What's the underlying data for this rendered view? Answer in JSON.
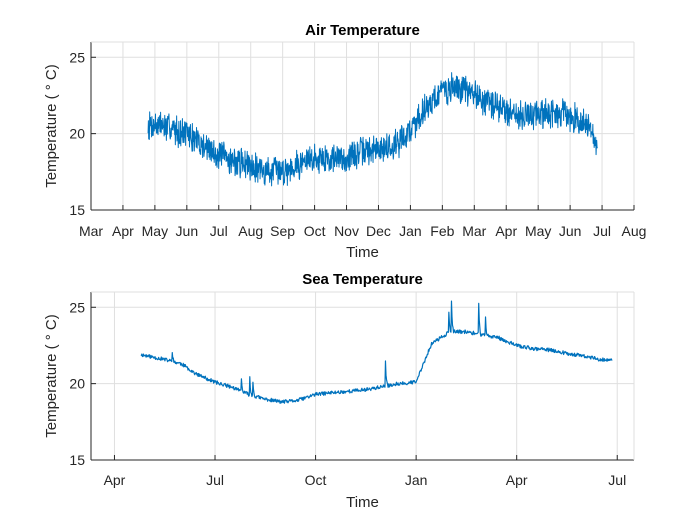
{
  "chart_data": [
    {
      "type": "line",
      "title": "Air Temperature",
      "xlabel": "Time",
      "ylabel": "Temperature ( ° C)",
      "ylim": [
        15,
        26
      ],
      "yticks": [
        15,
        20,
        25
      ],
      "xlim": [
        "Mar",
        "Aug"
      ],
      "xticks": [
        "Mar",
        "Apr",
        "May",
        "Jun",
        "Jul",
        "Aug",
        "Sep",
        "Oct",
        "Nov",
        "Dec",
        "Jan",
        "Feb",
        "Mar",
        "Apr",
        "May",
        "Jun",
        "Jul",
        "Aug"
      ],
      "grid": true,
      "color": "#0072BD",
      "series": [
        {
          "x": [
            "Apr 25",
            "May 1",
            "May 15",
            "Jun 1",
            "Jun 15",
            "Jul 1",
            "Jul 15",
            "Aug 1",
            "Aug 15",
            "Sep 1",
            "Sep 15",
            "Oct 1",
            "Oct 15",
            "Nov 1",
            "Nov 15",
            "Dec 1",
            "Dec 15",
            "Jan 1",
            "Jan 15",
            "Feb 1",
            "Feb 15",
            "Mar 1",
            "Mar 15",
            "Apr 1",
            "Apr 15",
            "May 1",
            "May 15",
            "Jun 1",
            "Jun 15",
            "Jun 27"
          ],
          "values": [
            20.6,
            20.6,
            20.4,
            20.0,
            19.3,
            18.6,
            18.2,
            18.0,
            17.5,
            17.6,
            18.0,
            18.4,
            18.4,
            18.4,
            18.8,
            19.0,
            19.2,
            20.2,
            21.7,
            22.8,
            23.0,
            22.6,
            22.0,
            21.5,
            21.2,
            21.3,
            21.4,
            21.1,
            20.8,
            19.2
          ]
        }
      ]
    },
    {
      "type": "line",
      "title": "Sea Temperature",
      "xlabel": "Time",
      "ylabel": "Temperature ( ° C)",
      "ylim": [
        15,
        26
      ],
      "yticks": [
        15,
        20,
        25
      ],
      "xticks": [
        "Apr",
        "Jul",
        "Oct",
        "Jan",
        "Apr",
        "Jul"
      ],
      "grid": true,
      "color": "#0072BD",
      "series": [
        {
          "x": [
            "Apr 25",
            "May 1",
            "May 15",
            "Jun 1",
            "Jun 15",
            "Jul 1",
            "Jul 15",
            "Aug 1",
            "Aug 15",
            "Sep 1",
            "Sep 15",
            "Oct 1",
            "Oct 15",
            "Nov 1",
            "Nov 15",
            "Dec 1",
            "Dec 15",
            "Jan 1",
            "Jan 15",
            "Feb 1",
            "Feb 15",
            "Mar 1",
            "Mar 15",
            "Apr 1",
            "Apr 15",
            "May 1",
            "May 15",
            "Jun 1",
            "Jun 15",
            "Jun 27"
          ],
          "values": [
            21.9,
            21.8,
            21.6,
            21.3,
            20.6,
            20.1,
            19.8,
            19.3,
            19.0,
            18.8,
            18.9,
            19.3,
            19.4,
            19.5,
            19.6,
            19.8,
            20.0,
            20.1,
            22.6,
            23.4,
            23.4,
            23.2,
            23.0,
            22.5,
            22.3,
            22.2,
            22.0,
            21.8,
            21.6,
            21.5
          ]
        }
      ]
    }
  ]
}
